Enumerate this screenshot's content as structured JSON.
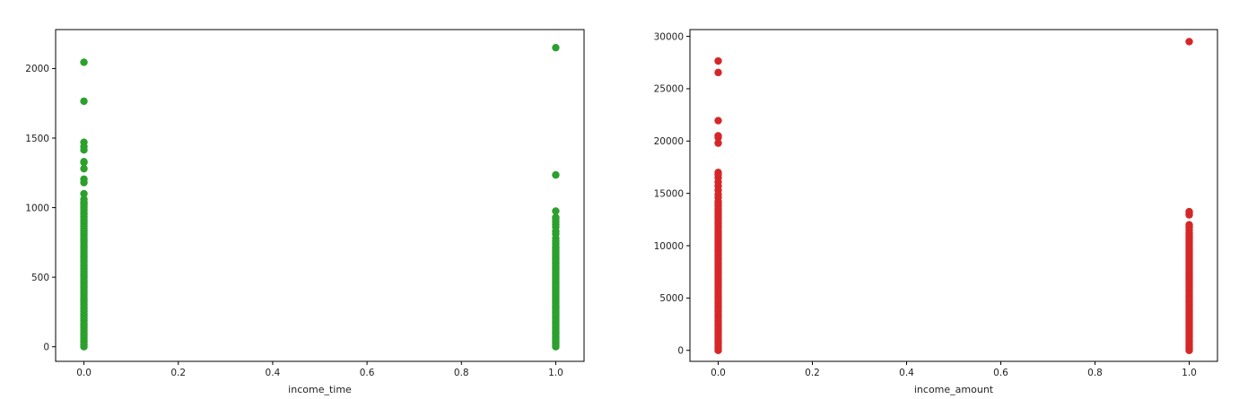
{
  "chart_data": [
    {
      "type": "scatter",
      "title": "",
      "xlabel": "income_time",
      "ylabel": "",
      "xlim": [
        -0.06,
        1.06
      ],
      "ylim": [
        -105,
        2280
      ],
      "xticks": [
        0.0,
        0.2,
        0.4,
        0.6,
        0.8,
        1.0
      ],
      "xtick_labels": [
        "0.0",
        "0.2",
        "0.4",
        "0.6",
        "0.8",
        "1.0"
      ],
      "yticks": [
        0,
        500,
        1000,
        1500,
        2000
      ],
      "ytick_labels": [
        "0",
        "500",
        "1000",
        "1500",
        "2000"
      ],
      "grid": false,
      "series": [
        {
          "color": "#2ca02c",
          "x": [
            0,
            0,
            0,
            0,
            0,
            0,
            0,
            0,
            0,
            0,
            0,
            0,
            0,
            0,
            1,
            1,
            1,
            1,
            1,
            1,
            1,
            1,
            1,
            1,
            1,
            1,
            1,
            1
          ],
          "y": [
            2045,
            1765,
            1470,
            1440,
            1415,
            1330,
            1325,
            1280,
            1205,
            1180,
            1100,
            1060,
            1040,
            1030,
            2150,
            1235,
            975,
            930,
            920,
            900,
            880,
            860,
            830,
            810,
            780,
            760,
            740,
            720
          ]
        }
      ],
      "dense_range": [
        {
          "x": 0,
          "y_min": 0,
          "y_max": 1020
        },
        {
          "x": 1,
          "y_min": 0,
          "y_max": 710
        }
      ]
    },
    {
      "type": "scatter",
      "title": "",
      "xlabel": "income_amount",
      "ylabel": "",
      "xlim": [
        -0.06,
        1.06
      ],
      "ylim": [
        -1050,
        30650
      ],
      "xticks": [
        0.0,
        0.2,
        0.4,
        0.6,
        0.8,
        1.0
      ],
      "xtick_labels": [
        "0.0",
        "0.2",
        "0.4",
        "0.6",
        "0.8",
        "1.0"
      ],
      "yticks": [
        0,
        5000,
        10000,
        15000,
        20000,
        25000,
        30000
      ],
      "ytick_labels": [
        "0",
        "5000",
        "10000",
        "15000",
        "20000",
        "25000",
        "30000"
      ],
      "grid": false,
      "series": [
        {
          "color": "#d62728",
          "x": [
            0,
            0,
            0,
            0,
            0,
            0,
            0,
            0,
            0,
            0,
            0,
            0,
            0,
            0,
            0,
            1,
            1,
            1,
            1,
            1,
            1,
            1,
            1
          ],
          "y": [
            27650,
            26550,
            21950,
            20500,
            20350,
            19800,
            17000,
            16800,
            16500,
            16100,
            15700,
            15300,
            14900,
            14600,
            14200,
            29500,
            13250,
            13100,
            12950,
            12000,
            11800,
            11500,
            11200
          ]
        }
      ],
      "dense_range": [
        {
          "x": 0,
          "y_min": 0,
          "y_max": 14000
        },
        {
          "x": 1,
          "y_min": 0,
          "y_max": 11000
        }
      ]
    }
  ]
}
